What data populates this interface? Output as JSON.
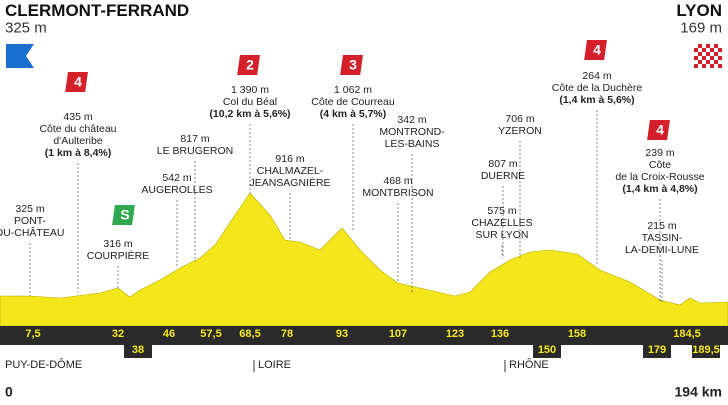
{
  "header": {
    "start": {
      "name": "CLERMONT-FERRAND",
      "altitude": "325 m"
    },
    "finish": {
      "name": "LYON",
      "altitude": "169 m"
    }
  },
  "waypoints": [
    {
      "lines": [
        "325 m",
        "PONT-",
        "DU-CHÂTEAU"
      ]
    },
    {
      "lines": [
        "435 m",
        "Côte du château",
        "d'Aulteribe",
        "(1 km à 8,4%)"
      ],
      "badge": "4"
    },
    {
      "lines": [
        "316 m",
        "COURPIÈRE"
      ],
      "badge": "S"
    },
    {
      "lines": [
        "542 m",
        "AUGEROLLES"
      ]
    },
    {
      "lines": [
        "817 m",
        "LE BRUGERON"
      ]
    },
    {
      "lines": [
        "1 390 m",
        "Col du Béal",
        "(10,2 km à 5,6%)"
      ],
      "badge": "2"
    },
    {
      "lines": [
        "916 m",
        "CHALMAZEL-",
        "JEANSAGNIÈRE"
      ]
    },
    {
      "lines": [
        "1 062 m",
        "Côte de Courreau",
        "(4 km à 5,7%)"
      ],
      "badge": "3"
    },
    {
      "lines": [
        "468 m",
        "MONTBRISON"
      ]
    },
    {
      "lines": [
        "342 m",
        "MONTROND-",
        "LES-BAINS"
      ]
    },
    {
      "lines": [
        "706 m",
        "YZERON"
      ]
    },
    {
      "lines": [
        "807 m",
        "DUERNE"
      ]
    },
    {
      "lines": [
        "575 m",
        "CHAZELLES",
        "SUR LYON"
      ]
    },
    {
      "lines": [
        "264 m",
        "Côte de la Duchère",
        "(1,4 km à 5,6%)"
      ],
      "badge": "4"
    },
    {
      "lines": [
        "239 m",
        "Côte",
        "de la Croix-Rousse",
        "(1,4 km à 4,8%)"
      ],
      "badge": "4"
    },
    {
      "lines": [
        "215 m",
        "TASSIN-",
        "LA-DEMI-LUNE"
      ]
    }
  ],
  "km_markers": [
    "7,5",
    "32",
    "46",
    "57,5",
    "68,5",
    "78",
    "93",
    "107",
    "123",
    "136",
    "158",
    "184,5"
  ],
  "km_markers_below": [
    "38",
    "150",
    "179",
    "189,5"
  ],
  "departments": [
    "PUY-DE-DÔME",
    "LOIRE",
    "RHÔNE"
  ],
  "distance": {
    "start": "0",
    "end": "194 km"
  }
}
